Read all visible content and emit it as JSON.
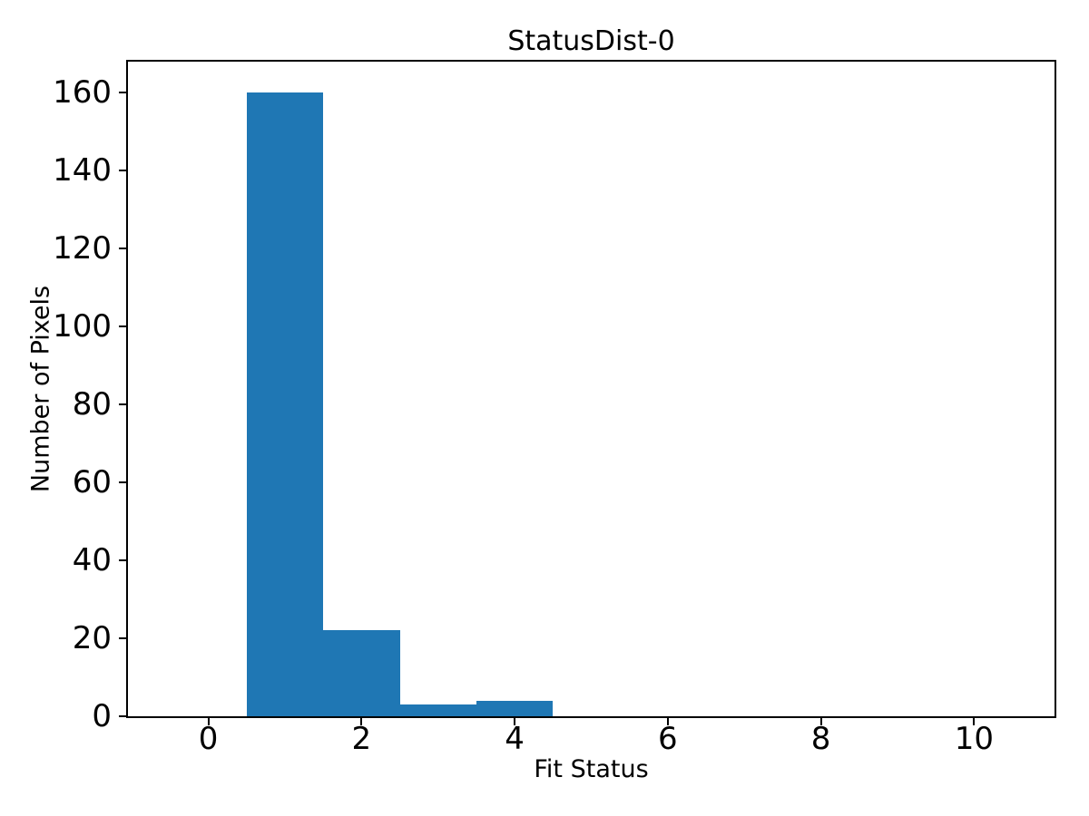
{
  "chart_data": {
    "type": "bar",
    "subtype": "histogram",
    "title": "StatusDist-0",
    "xlabel": "Fit Status",
    "ylabel": "Number of Pixels",
    "bin_centers": [
      1,
      2,
      3,
      4
    ],
    "counts": [
      160,
      22,
      3,
      4
    ],
    "bin_width": 1,
    "xlim": [
      -1.05,
      11.05
    ],
    "ylim": [
      0,
      168
    ],
    "xticks": [
      0,
      2,
      4,
      6,
      8,
      10
    ],
    "yticks": [
      0,
      20,
      40,
      60,
      80,
      100,
      120,
      140,
      160
    ],
    "grid": false,
    "legend_position": "none",
    "colors": {
      "bar": "#1f77b4",
      "text": "#000000",
      "spine": "#000000",
      "background": "#ffffff"
    }
  }
}
